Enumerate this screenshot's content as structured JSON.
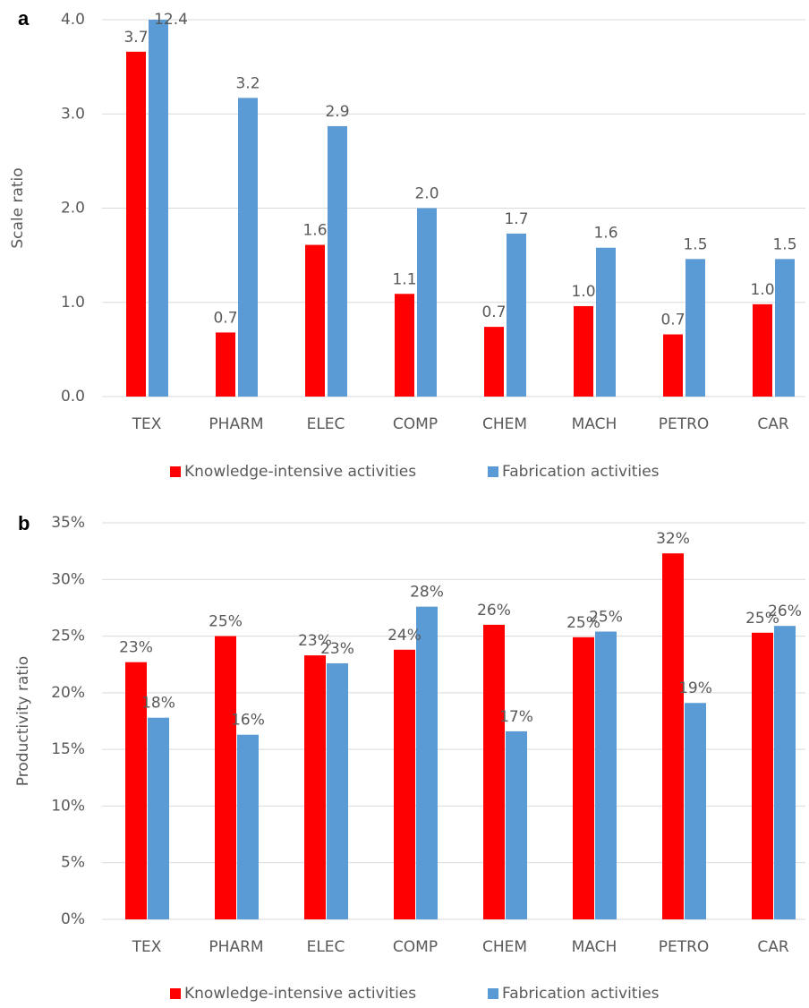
{
  "chart_data": [
    {
      "type": "bar",
      "panel": "a",
      "ylabel": "Scale ratio",
      "categories": [
        "TEX",
        "PHARM",
        "ELEC",
        "COMP",
        "CHEM",
        "MACH",
        "PETRO",
        "CAR"
      ],
      "series": [
        {
          "name": "Knowledge-intensive activities",
          "color": "#ff0000",
          "values": [
            3.66,
            0.68,
            1.61,
            1.09,
            0.74,
            0.96,
            0.66,
            0.98
          ],
          "value_labels": [
            "3.7",
            "0.7",
            "1.6",
            "1.1",
            "0.7",
            "1.0",
            "0.7",
            "1.0"
          ]
        },
        {
          "name": "Fabrication activities",
          "color": "#5b9bd5",
          "values": [
            12.4,
            3.17,
            2.87,
            2.0,
            1.73,
            1.58,
            1.46,
            1.46
          ],
          "value_labels": [
            "12.4",
            "3.2",
            "2.9",
            "2.0",
            "1.7",
            "1.6",
            "1.5",
            "1.5"
          ]
        }
      ],
      "ylim": [
        0,
        4
      ],
      "yticks": [
        {
          "value": 0,
          "label": "0.0"
        },
        {
          "value": 1,
          "label": "1.0"
        },
        {
          "value": 2,
          "label": "2.0"
        },
        {
          "value": 3,
          "label": "3.0"
        },
        {
          "value": 4,
          "label": "4.0"
        }
      ],
      "grid": true,
      "legend": "bottom"
    },
    {
      "type": "bar",
      "panel": "b",
      "ylabel": "Productivity ratio",
      "categories": [
        "TEX",
        "PHARM",
        "ELEC",
        "COMP",
        "CHEM",
        "MACH",
        "PETRO",
        "CAR"
      ],
      "series": [
        {
          "name": "Knowledge-intensive activities",
          "color": "#ff0000",
          "values": [
            22.7,
            25.0,
            23.3,
            23.8,
            26.0,
            24.9,
            32.3,
            25.3
          ],
          "value_labels": [
            "23%",
            "25%",
            "23%",
            "24%",
            "26%",
            "25%",
            "32%",
            "25%"
          ]
        },
        {
          "name": "Fabrication activities",
          "color": "#5b9bd5",
          "values": [
            17.8,
            16.3,
            22.6,
            27.6,
            16.6,
            25.4,
            19.1,
            25.9
          ],
          "value_labels": [
            "18%",
            "16%",
            "23%",
            "28%",
            "17%",
            "25%",
            "19%",
            "26%"
          ]
        }
      ],
      "ylim": [
        0,
        35
      ],
      "yticks": [
        {
          "value": 0,
          "label": "0%"
        },
        {
          "value": 5,
          "label": "5%"
        },
        {
          "value": 10,
          "label": "10%"
        },
        {
          "value": 15,
          "label": "15%"
        },
        {
          "value": 20,
          "label": "20%"
        },
        {
          "value": 25,
          "label": "25%"
        },
        {
          "value": 30,
          "label": "30%"
        },
        {
          "value": 35,
          "label": "35%"
        }
      ],
      "grid": true,
      "legend": "bottom"
    }
  ]
}
